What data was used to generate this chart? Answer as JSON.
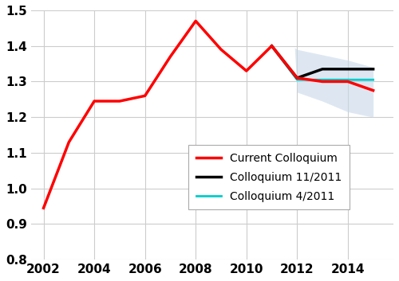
{
  "red_x": [
    2002,
    2003,
    2004,
    2005,
    2006,
    2007,
    2008,
    2009,
    2010,
    2011,
    2012,
    2013,
    2014,
    2015
  ],
  "red_y": [
    0.945,
    1.13,
    1.245,
    1.245,
    1.26,
    1.37,
    1.47,
    1.39,
    1.33,
    1.4,
    1.31,
    1.3,
    1.3,
    1.275
  ],
  "black_x": [
    2011,
    2012,
    2013,
    2014,
    2015
  ],
  "black_y": [
    1.4,
    1.31,
    1.335,
    1.335,
    1.335
  ],
  "cyan_x": [
    2011,
    2012,
    2013,
    2014,
    2015
  ],
  "cyan_y": [
    1.4,
    1.305,
    1.305,
    1.305,
    1.305
  ],
  "shade_x": [
    2011.8,
    2012,
    2013,
    2014,
    2015,
    2015,
    2014,
    2013,
    2012,
    2011.8
  ],
  "shade_upper": [
    1.395,
    1.39,
    1.375,
    1.36,
    1.34
  ],
  "shade_lower": [
    1.395,
    1.27,
    1.245,
    1.215,
    1.2
  ],
  "red_color": "#ff0000",
  "black_color": "#000000",
  "cyan_color": "#00cccc",
  "shade_color": "#c8d8e8",
  "shade_alpha": 0.6,
  "xlim": [
    2001.5,
    2015.8
  ],
  "ylim": [
    0.8,
    1.5
  ],
  "xticks": [
    2002,
    2004,
    2006,
    2008,
    2010,
    2012,
    2014
  ],
  "yticks": [
    0.8,
    0.9,
    1.0,
    1.1,
    1.2,
    1.3,
    1.4,
    1.5
  ],
  "linewidth_red": 2.5,
  "linewidth_black": 2.5,
  "linewidth_cyan": 2.0,
  "legend_labels": [
    "Current Colloquium",
    "Colloquium 11/2011",
    "Colloquium 4/2011"
  ],
  "grid_color": "#cccccc",
  "background_color": "#ffffff",
  "figsize": [
    5.0,
    3.53
  ],
  "dpi": 100
}
